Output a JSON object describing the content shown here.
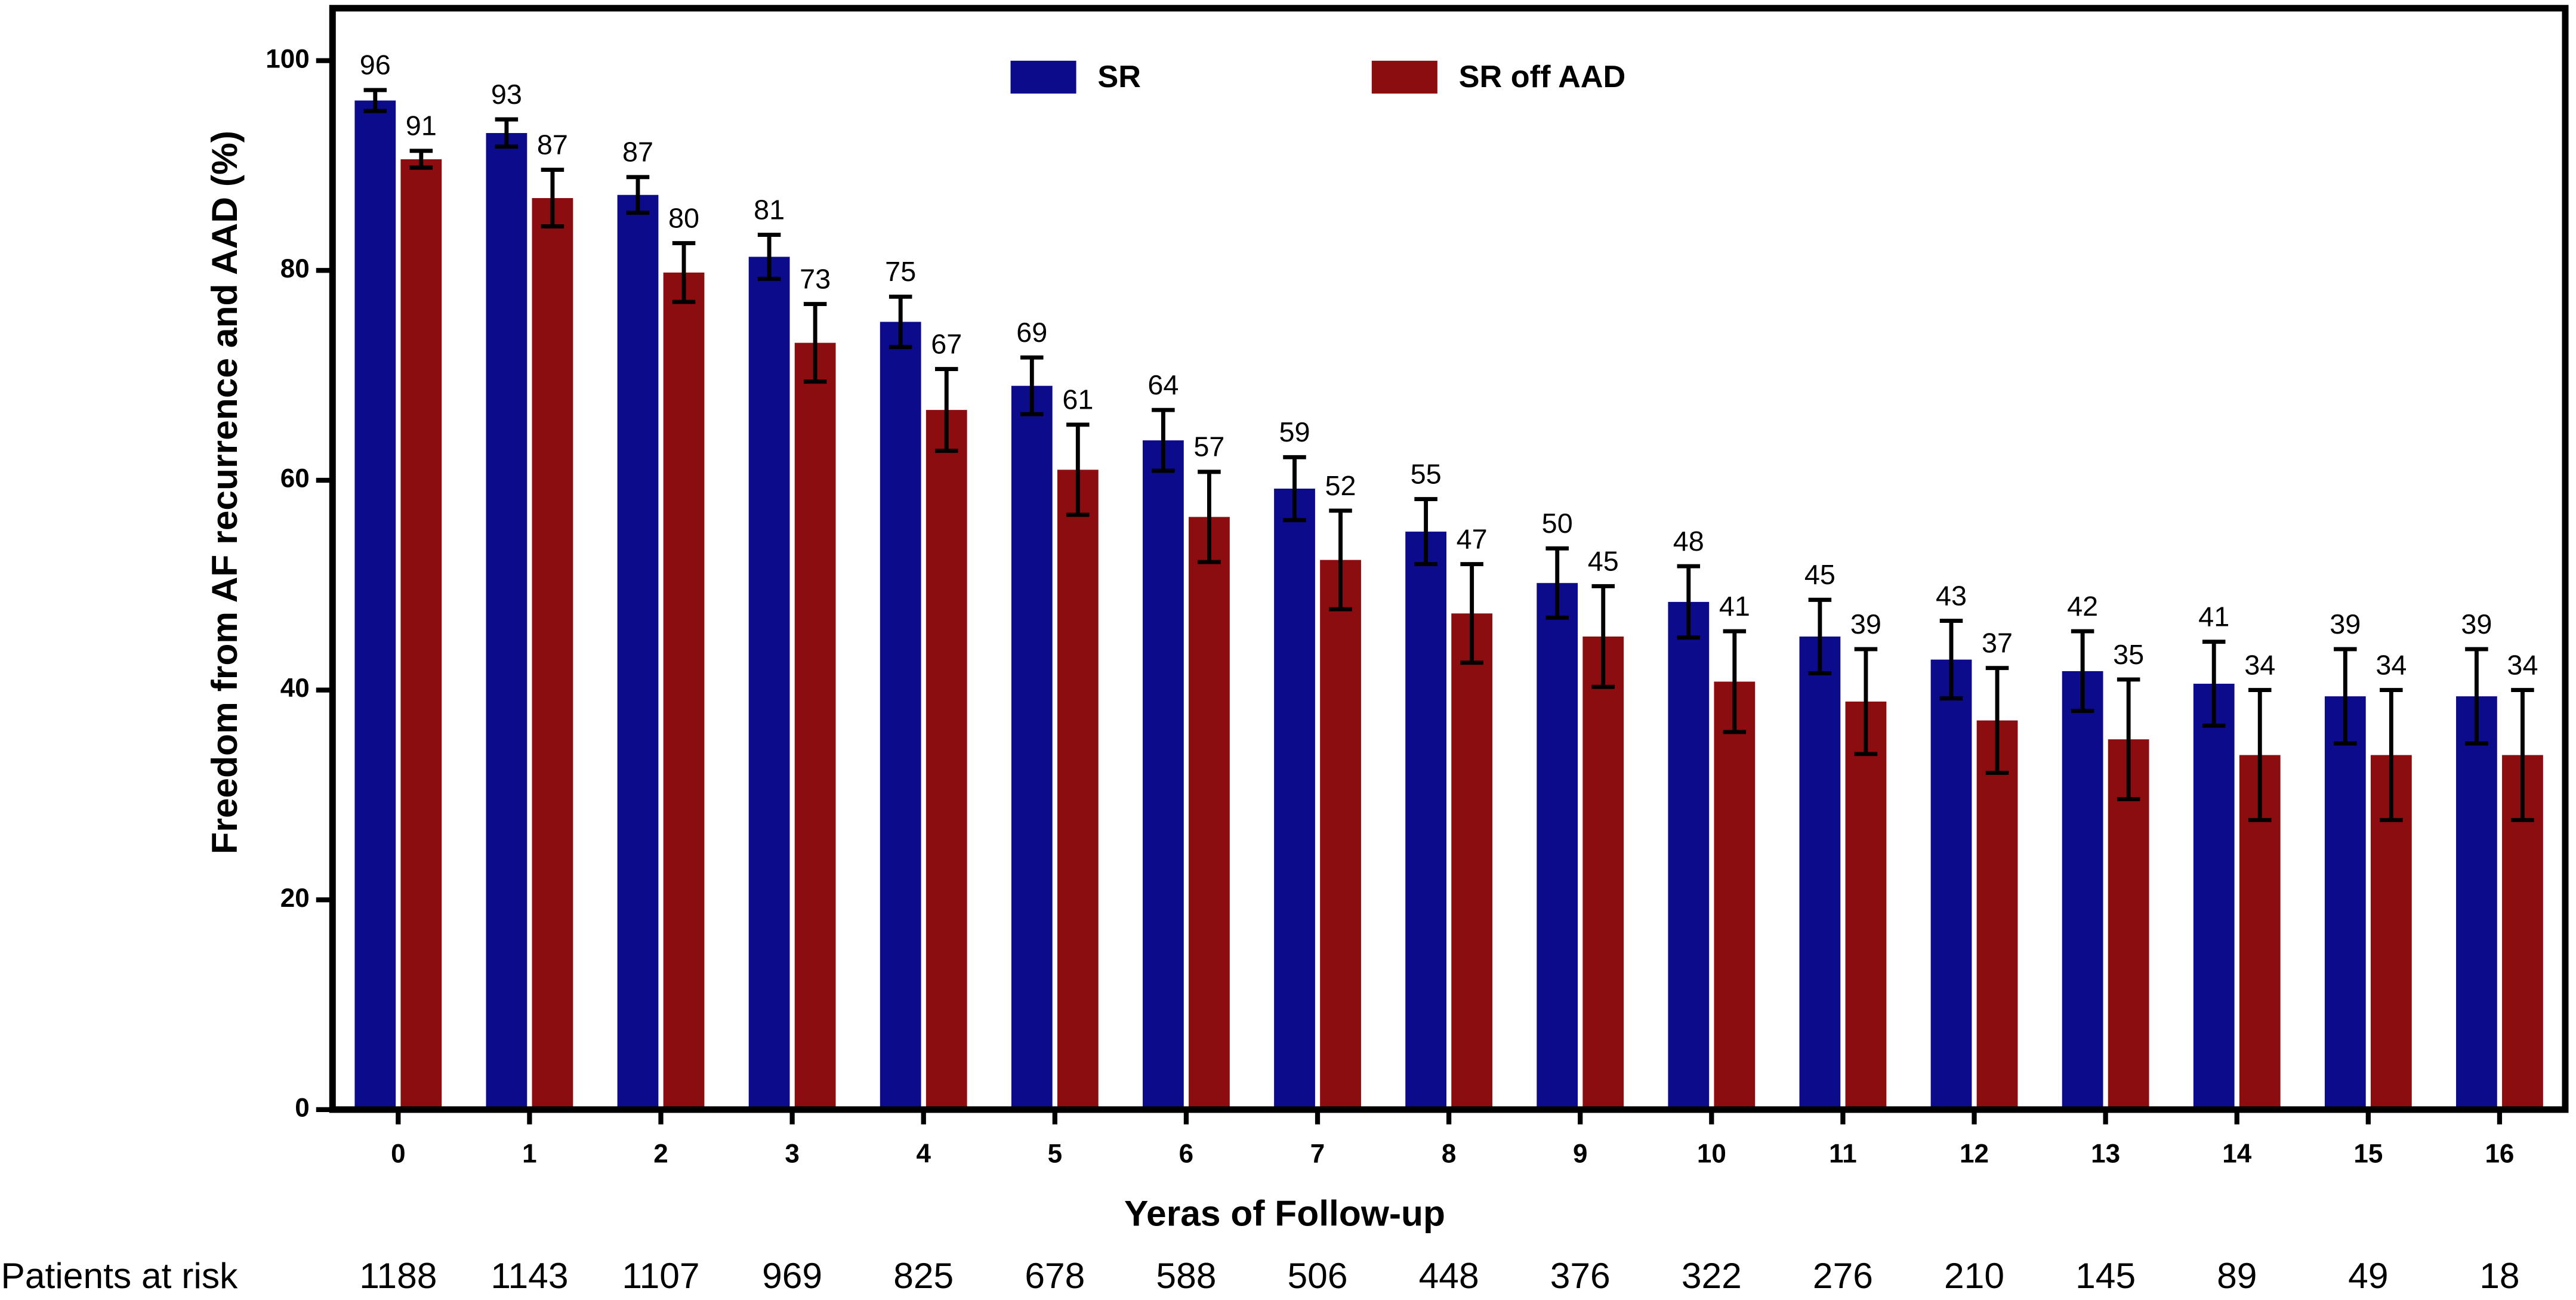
{
  "chart_data": {
    "type": "bar",
    "y_label": "Freedom from AF recurrence and AAD  (%)",
    "x_label": "Yeras of Follow-up",
    "categories": [
      "0",
      "1",
      "2",
      "3",
      "4",
      "5",
      "6",
      "7",
      "8",
      "9",
      "10",
      "11",
      "12",
      "13",
      "14",
      "15",
      "16"
    ],
    "series": [
      {
        "name": "SR",
        "color": "#0b0b8c",
        "values": [
          96.2,
          93.1,
          87.2,
          81.3,
          75.1,
          69.0,
          63.8,
          59.2,
          55.1,
          50.2,
          48.4,
          45.1,
          42.9,
          41.8,
          40.6,
          39.4,
          39.4
        ],
        "value_labels": [
          96,
          93,
          87,
          81,
          75,
          69,
          64,
          59,
          55,
          50,
          48,
          45,
          43,
          42,
          41,
          39,
          39
        ],
        "errors": [
          1.0,
          1.3,
          1.7,
          2.1,
          2.4,
          2.7,
          2.9,
          3.0,
          3.1,
          3.3,
          3.4,
          3.5,
          3.7,
          3.8,
          4.0,
          4.5,
          4.5
        ]
      },
      {
        "name": "SR off AAD",
        "color": "#8b0d0f",
        "values": [
          90.6,
          86.9,
          79.8,
          73.1,
          66.7,
          61.0,
          56.5,
          52.4,
          47.3,
          45.1,
          40.8,
          38.9,
          37.1,
          35.3,
          33.8,
          33.8,
          33.8
        ],
        "value_labels": [
          91,
          87,
          80,
          73,
          67,
          61,
          57,
          52,
          47,
          45,
          41,
          39,
          37,
          35,
          34,
          34,
          34
        ],
        "errors": [
          0.8,
          2.7,
          2.8,
          3.7,
          3.9,
          4.3,
          4.3,
          4.7,
          4.7,
          4.8,
          4.8,
          5.0,
          5.0,
          5.7,
          6.2,
          6.2,
          6.2
        ]
      }
    ],
    "ylim": [
      0,
      105
    ],
    "yticks": [
      0,
      20,
      40,
      60,
      80,
      100
    ],
    "legend": "top",
    "patients_at_risk": {
      "label": "Patients at risk",
      "values": [
        1188,
        1143,
        1107,
        969,
        825,
        678,
        588,
        506,
        448,
        376,
        322,
        276,
        210,
        145,
        89,
        49,
        18
      ]
    }
  }
}
